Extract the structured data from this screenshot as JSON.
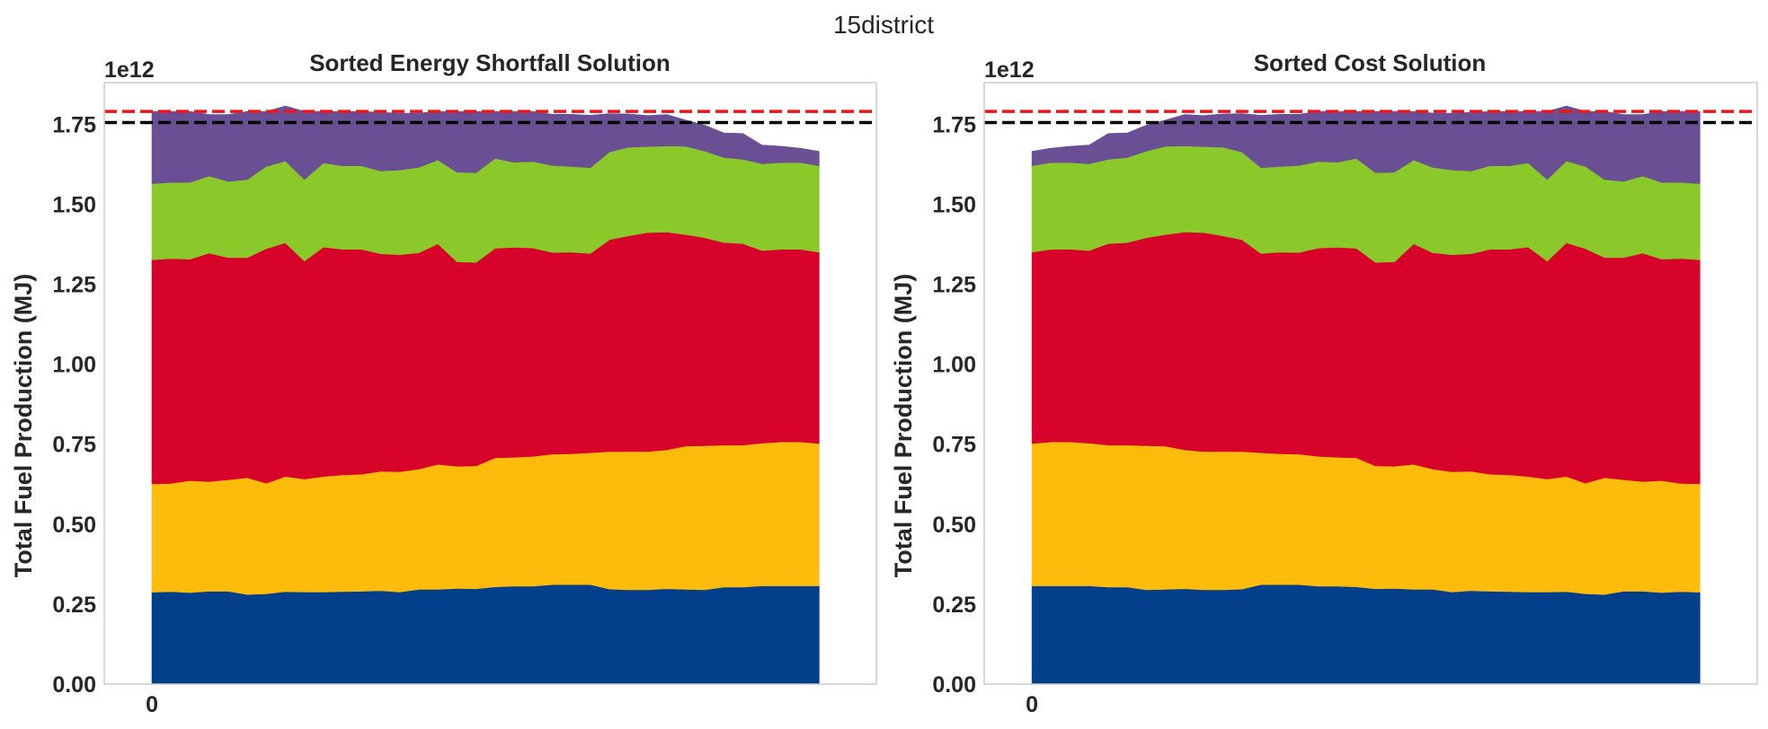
{
  "figure": {
    "suptitle": "15district"
  },
  "colors": {
    "layer_1": "#033f8a",
    "layer_2": "#fdbb0c",
    "layer_3": "#d8032b",
    "layer_4": "#8ac929",
    "layer_5": "#6a4f94",
    "red_line": "#e8171c",
    "black_line": "#000000",
    "frame": "#cccccc"
  },
  "chart_data": [
    {
      "type": "area",
      "stacked": true,
      "title": "Sorted Energy Shortfall Solution",
      "ylabel": "Total Fuel Production (MJ)",
      "xlabel": "",
      "y_offset_label": "1e12",
      "x_range": [
        -2.5,
        38
      ],
      "ylim": [
        0,
        1880000000000.0
      ],
      "x_ticks": [
        0
      ],
      "x_tick_labels": [
        "0"
      ],
      "y_ticks": [
        0,
        250000000000.0,
        500000000000.0,
        750000000000.0,
        1000000000000.0,
        1250000000000.0,
        1500000000000.0,
        1750000000000.0
      ],
      "y_tick_labels": [
        "0.00",
        "0.25",
        "0.50",
        "0.75",
        "1.00",
        "1.25",
        "1.50",
        "1.75"
      ],
      "grid": false,
      "x": [
        0,
        1,
        2,
        3,
        4,
        5,
        6,
        7,
        8,
        9,
        10,
        11,
        12,
        13,
        14,
        15,
        16,
        17,
        18,
        19,
        20,
        21,
        22,
        23,
        24,
        25,
        26,
        27,
        28,
        29,
        30,
        31,
        32,
        33,
        34,
        35
      ],
      "series": [
        {
          "color_key": "layer_1",
          "values": [
            287000000000.0,
            289000000000.0,
            286000000000.0,
            290000000000.0,
            290000000000.0,
            280000000000.0,
            282000000000.0,
            289000000000.0,
            288000000000.0,
            288000000000.0,
            289000000000.0,
            290000000000.0,
            292000000000.0,
            288000000000.0,
            296000000000.0,
            296000000000.0,
            299000000000.0,
            298000000000.0,
            304000000000.0,
            306000000000.0,
            306000000000.0,
            311000000000.0,
            311000000000.0,
            311000000000.0,
            297000000000.0,
            295000000000.0,
            295000000000.0,
            298000000000.0,
            296000000000.0,
            295000000000.0,
            303000000000.0,
            303000000000.0,
            307000000000.0,
            307000000000.0,
            307000000000.0,
            307000000000.0
          ]
        },
        {
          "color_key": "layer_2",
          "values": [
            339000000000.0,
            338000000000.0,
            350000000000.0,
            343000000000.0,
            349000000000.0,
            365000000000.0,
            346000000000.0,
            360000000000.0,
            353000000000.0,
            361000000000.0,
            365000000000.0,
            366000000000.0,
            373000000000.0,
            376000000000.0,
            376000000000.0,
            391000000000.0,
            382000000000.0,
            384000000000.0,
            403000000000.0,
            403000000000.0,
            406000000000.0,
            408000000000.0,
            409000000000.0,
            412000000000.0,
            430000000000.0,
            432000000000.0,
            432000000000.0,
            434000000000.0,
            448000000000.0,
            450000000000.0,
            444000000000.0,
            444000000000.0,
            446000000000.0,
            450000000000.0,
            450000000000.0,
            445000000000.0
          ]
        },
        {
          "color_key": "layer_3",
          "values": [
            700000000000.0,
            703000000000.0,
            692000000000.0,
            714000000000.0,
            694000000000.0,
            688000000000.0,
            733000000000.0,
            730000000000.0,
            681000000000.0,
            717000000000.0,
            705000000000.0,
            703000000000.0,
            680000000000.0,
            678000000000.0,
            676000000000.0,
            689000000000.0,
            639000000000.0,
            636000000000.0,
            655000000000.0,
            656000000000.0,
            651000000000.0,
            630000000000.0,
            630000000000.0,
            623000000000.0,
            662000000000.0,
            674000000000.0,
            684000000000.0,
            681000000000.0,
            661000000000.0,
            650000000000.0,
            633000000000.0,
            630000000000.0,
            602000000000.0,
            602000000000.0,
            602000000000.0,
            598000000000.0
          ]
        },
        {
          "color_key": "layer_4",
          "values": [
            238000000000.0,
            238000000000.0,
            240000000000.0,
            241000000000.0,
            238000000000.0,
            244000000000.0,
            257000000000.0,
            256000000000.0,
            255000000000.0,
            263000000000.0,
            261000000000.0,
            261000000000.0,
            259000000000.0,
            265000000000.0,
            267000000000.0,
            262000000000.0,
            280000000000.0,
            280000000000.0,
            281000000000.0,
            266000000000.0,
            270000000000.0,
            272000000000.0,
            268000000000.0,
            268000000000.0,
            274000000000.0,
            277000000000.0,
            269000000000.0,
            269000000000.0,
            276000000000.0,
            271000000000.0,
            266000000000.0,
            263000000000.0,
            271000000000.0,
            271000000000.0,
            271000000000.0,
            270000000000.0
          ]
        },
        {
          "color_key": "layer_5",
          "values": [
            226000000000.0,
            222000000000.0,
            222000000000.0,
            192000000000.0,
            209000000000.0,
            213000000000.0,
            172000000000.0,
            172000000000.0,
            213000000000.0,
            161000000000.0,
            170000000000.0,
            170000000000.0,
            183000000000.0,
            177000000000.0,
            170000000000.0,
            152000000000.0,
            190000000000.0,
            192000000000.0,
            147000000000.0,
            159000000000.0,
            157000000000.0,
            160000000000.0,
            163000000000.0,
            164000000000.0,
            120000000000.0,
            104000000000.0,
            97000000000.0,
            98000000000.0,
            82000000000.0,
            81000000000.0,
            77000000000.0,
            81000000000.0,
            59000000000.0,
            51000000000.0,
            45000000000.0,
            45000000000.0
          ]
        }
      ],
      "hlines": [
        {
          "y": 1790000000000.0,
          "color_key": "red_line",
          "style": "dashed"
        },
        {
          "y": 1755000000000.0,
          "color_key": "black_line",
          "style": "dashed"
        }
      ]
    },
    {
      "type": "area",
      "stacked": true,
      "title": "Sorted Cost Solution",
      "ylabel": "Total Fuel Production (MJ)",
      "xlabel": "",
      "y_offset_label": "1e12",
      "x_range": [
        -2.5,
        38
      ],
      "ylim": [
        0,
        1880000000000.0
      ],
      "x_ticks": [
        0
      ],
      "x_tick_labels": [
        "0"
      ],
      "y_ticks": [
        0,
        250000000000.0,
        500000000000.0,
        750000000000.0,
        1000000000000.0,
        1250000000000.0,
        1500000000000.0,
        1750000000000.0
      ],
      "y_tick_labels": [
        "0.00",
        "0.25",
        "0.50",
        "0.75",
        "1.00",
        "1.25",
        "1.50",
        "1.75"
      ],
      "grid": false,
      "x": [
        0,
        1,
        2,
        3,
        4,
        5,
        6,
        7,
        8,
        9,
        10,
        11,
        12,
        13,
        14,
        15,
        16,
        17,
        18,
        19,
        20,
        21,
        22,
        23,
        24,
        25,
        26,
        27,
        28,
        29,
        30,
        31,
        32,
        33,
        34,
        35
      ],
      "series": [
        {
          "color_key": "layer_1",
          "values": [
            307000000000.0,
            307000000000.0,
            307000000000.0,
            307000000000.0,
            303000000000.0,
            303000000000.0,
            295000000000.0,
            296000000000.0,
            298000000000.0,
            295000000000.0,
            295000000000.0,
            297000000000.0,
            311000000000.0,
            311000000000.0,
            311000000000.0,
            306000000000.0,
            306000000000.0,
            304000000000.0,
            298000000000.0,
            299000000000.0,
            296000000000.0,
            296000000000.0,
            288000000000.0,
            292000000000.0,
            290000000000.0,
            289000000000.0,
            288000000000.0,
            288000000000.0,
            289000000000.0,
            282000000000.0,
            280000000000.0,
            290000000000.0,
            290000000000.0,
            286000000000.0,
            289000000000.0,
            287000000000.0
          ]
        },
        {
          "color_key": "layer_2",
          "values": [
            445000000000.0,
            450000000000.0,
            450000000000.0,
            446000000000.0,
            444000000000.0,
            444000000000.0,
            450000000000.0,
            448000000000.0,
            434000000000.0,
            432000000000.0,
            432000000000.0,
            430000000000.0,
            412000000000.0,
            409000000000.0,
            408000000000.0,
            406000000000.0,
            403000000000.0,
            403000000000.0,
            384000000000.0,
            382000000000.0,
            391000000000.0,
            376000000000.0,
            376000000000.0,
            373000000000.0,
            366000000000.0,
            365000000000.0,
            361000000000.0,
            353000000000.0,
            360000000000.0,
            346000000000.0,
            365000000000.0,
            349000000000.0,
            343000000000.0,
            350000000000.0,
            338000000000.0,
            339000000000.0
          ]
        },
        {
          "color_key": "layer_3",
          "values": [
            598000000000.0,
            602000000000.0,
            602000000000.0,
            602000000000.0,
            630000000000.0,
            633000000000.0,
            650000000000.0,
            661000000000.0,
            681000000000.0,
            684000000000.0,
            674000000000.0,
            662000000000.0,
            623000000000.0,
            630000000000.0,
            630000000000.0,
            651000000000.0,
            656000000000.0,
            655000000000.0,
            636000000000.0,
            639000000000.0,
            689000000000.0,
            676000000000.0,
            678000000000.0,
            680000000000.0,
            703000000000.0,
            705000000000.0,
            717000000000.0,
            681000000000.0,
            730000000000.0,
            733000000000.0,
            688000000000.0,
            694000000000.0,
            714000000000.0,
            692000000000.0,
            703000000000.0,
            700000000000.0
          ]
        },
        {
          "color_key": "layer_4",
          "values": [
            270000000000.0,
            271000000000.0,
            271000000000.0,
            271000000000.0,
            263000000000.0,
            266000000000.0,
            271000000000.0,
            276000000000.0,
            269000000000.0,
            269000000000.0,
            277000000000.0,
            274000000000.0,
            268000000000.0,
            268000000000.0,
            272000000000.0,
            270000000000.0,
            266000000000.0,
            281000000000.0,
            280000000000.0,
            280000000000.0,
            262000000000.0,
            267000000000.0,
            265000000000.0,
            259000000000.0,
            261000000000.0,
            261000000000.0,
            263000000000.0,
            255000000000.0,
            256000000000.0,
            257000000000.0,
            244000000000.0,
            238000000000.0,
            241000000000.0,
            240000000000.0,
            238000000000.0,
            238000000000.0
          ]
        },
        {
          "color_key": "layer_5",
          "values": [
            45000000000.0,
            45000000000.0,
            51000000000.0,
            59000000000.0,
            81000000000.0,
            77000000000.0,
            81000000000.0,
            82000000000.0,
            98000000000.0,
            97000000000.0,
            104000000000.0,
            120000000000.0,
            164000000000.0,
            163000000000.0,
            160000000000.0,
            157000000000.0,
            159000000000.0,
            147000000000.0,
            192000000000.0,
            190000000000.0,
            152000000000.0,
            170000000000.0,
            177000000000.0,
            183000000000.0,
            170000000000.0,
            170000000000.0,
            161000000000.0,
            213000000000.0,
            172000000000.0,
            172000000000.0,
            213000000000.0,
            209000000000.0,
            192000000000.0,
            222000000000.0,
            222000000000.0,
            226000000000.0
          ]
        }
      ],
      "hlines": [
        {
          "y": 1790000000000.0,
          "color_key": "red_line",
          "style": "dashed"
        },
        {
          "y": 1755000000000.0,
          "color_key": "black_line",
          "style": "dashed"
        }
      ]
    }
  ]
}
